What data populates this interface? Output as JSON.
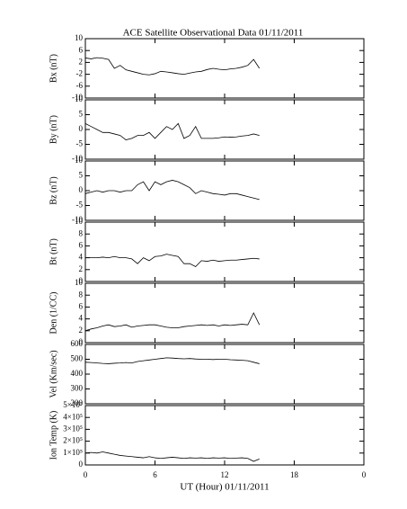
{
  "title": "ACE Satellite Observational Data   01/11/2011",
  "xlabel": "UT (Hour)  01/11/2011",
  "chart_data": [
    {
      "type": "line",
      "ylabel": "Bx (nT)",
      "color": "#000000",
      "x": [
        0,
        0.5,
        1,
        1.5,
        2,
        2.5,
        3,
        3.5,
        4,
        4.5,
        5,
        5.5,
        6,
        6.5,
        7,
        7.5,
        8,
        8.5,
        9,
        9.5,
        10,
        10.5,
        11,
        11.5,
        12,
        12.5,
        13,
        13.5,
        14,
        14.5,
        15
      ],
      "values": [
        3.5,
        3.2,
        3.6,
        3.4,
        3,
        0,
        1,
        -0.5,
        -1,
        -1.5,
        -2,
        -2.2,
        -1.8,
        -1,
        -1.2,
        -1.5,
        -1.8,
        -2,
        -1.6,
        -1.2,
        -1,
        -0.4,
        0,
        -0.3,
        -0.5,
        -0.2,
        0,
        0.4,
        1,
        3,
        0
      ],
      "xlim": [
        0,
        24
      ],
      "xticks": [
        0,
        6,
        12,
        18,
        {
          "value": 24,
          "label": "0"
        }
      ],
      "ylim": [
        -10,
        10
      ],
      "yticks": [
        -10,
        -6,
        -2,
        2,
        6,
        10
      ]
    },
    {
      "type": "line",
      "ylabel": "By (nT)",
      "color": "#000000",
      "x": [
        0,
        0.5,
        1,
        1.5,
        2,
        2.5,
        3,
        3.5,
        4,
        4.5,
        5,
        5.5,
        6,
        6.5,
        7,
        7.5,
        8,
        8.5,
        9,
        9.5,
        10,
        10.5,
        11,
        11.5,
        12,
        12.5,
        13,
        13.5,
        14,
        14.5,
        15
      ],
      "values": [
        2,
        1,
        0,
        -1,
        -1,
        -1.5,
        -2,
        -3.5,
        -3,
        -2,
        -2,
        -1,
        -3,
        -1,
        1,
        0,
        2,
        -3,
        -2,
        1,
        -3,
        -3,
        -3,
        -2.8,
        -2.5,
        -2.6,
        -2.5,
        -2.2,
        -2,
        -1.5,
        -2
      ],
      "xlim": [
        0,
        24
      ],
      "xticks": [
        0,
        6,
        12,
        18,
        {
          "value": 24,
          "label": "0"
        }
      ],
      "ylim": [
        -10,
        10
      ],
      "yticks": [
        -10,
        -5,
        0,
        5,
        10
      ]
    },
    {
      "type": "line",
      "ylabel": "Bz (nT)",
      "color": "#000000",
      "x": [
        0,
        0.5,
        1,
        1.5,
        2,
        2.5,
        3,
        3.5,
        4,
        4.5,
        5,
        5.5,
        6,
        6.5,
        7,
        7.5,
        8,
        8.5,
        9,
        9.5,
        10,
        10.5,
        11,
        11.5,
        12,
        12.5,
        13,
        13.5,
        14,
        14.5,
        15
      ],
      "values": [
        -1,
        -0.5,
        0,
        -0.5,
        0,
        0,
        -0.5,
        0,
        0,
        2,
        3,
        0,
        3,
        2,
        3,
        3.5,
        3,
        2,
        1,
        -1,
        0,
        -0.5,
        -1,
        -1.2,
        -1.5,
        -1,
        -1,
        -1.5,
        -2,
        -2.5,
        -3
      ],
      "xlim": [
        0,
        24
      ],
      "xticks": [
        0,
        6,
        12,
        18,
        {
          "value": 24,
          "label": "0"
        }
      ],
      "ylim": [
        -10,
        10
      ],
      "yticks": [
        -10,
        -5,
        0,
        5,
        10
      ]
    },
    {
      "type": "line",
      "ylabel": "Bt (nT)",
      "color": "#000000",
      "x": [
        0,
        0.5,
        1,
        1.5,
        2,
        2.5,
        3,
        3.5,
        4,
        4.5,
        5,
        5.5,
        6,
        6.5,
        7,
        7.5,
        8,
        8.5,
        9,
        9.5,
        10,
        10.5,
        11,
        11.5,
        12,
        12.5,
        13,
        13.5,
        14,
        14.5,
        15
      ],
      "values": [
        4,
        4,
        4,
        4.1,
        4,
        4.2,
        4,
        4,
        3.8,
        3,
        4,
        3.5,
        4.2,
        4.3,
        4.6,
        4.4,
        4.2,
        3,
        3,
        2.5,
        3.5,
        3.4,
        3.6,
        3.4,
        3.5,
        3.6,
        3.6,
        3.7,
        3.8,
        3.9,
        3.8
      ],
      "xlim": [
        0,
        24
      ],
      "xticks": [
        0,
        6,
        12,
        18,
        {
          "value": 24,
          "label": "0"
        }
      ],
      "ylim": [
        0,
        10
      ],
      "yticks": [
        0,
        2,
        4,
        6,
        8,
        10
      ]
    },
    {
      "type": "line",
      "ylabel": "Den (1/CC)",
      "color": "#000000",
      "x": [
        0,
        0.5,
        1,
        1.5,
        2,
        2.5,
        3,
        3.5,
        4,
        4.5,
        5,
        5.5,
        6,
        6.5,
        7,
        7.5,
        8,
        8.5,
        9,
        9.5,
        10,
        10.5,
        11,
        11.5,
        12,
        12.5,
        13,
        13.5,
        14,
        14.5,
        15
      ],
      "values": [
        2,
        2.3,
        2.5,
        2.8,
        3,
        2.7,
        2.8,
        3,
        2.6,
        2.8,
        2.9,
        3,
        3,
        2.8,
        2.6,
        2.5,
        2.5,
        2.7,
        2.8,
        2.9,
        3,
        2.9,
        3,
        2.8,
        3,
        2.9,
        3,
        3.1,
        3,
        5,
        3
      ],
      "xlim": [
        0,
        24
      ],
      "xticks": [
        0,
        6,
        12,
        18,
        {
          "value": 24,
          "label": "0"
        }
      ],
      "ylim": [
        0,
        10
      ],
      "yticks": [
        0,
        2,
        4,
        6,
        8,
        10
      ]
    },
    {
      "type": "line",
      "ylabel": "Vel (Km/sec)",
      "color": "#000000",
      "x": [
        0,
        0.5,
        1,
        1.5,
        2,
        2.5,
        3,
        3.5,
        4,
        4.5,
        5,
        5.5,
        6,
        6.5,
        7,
        7.5,
        8,
        8.5,
        9,
        9.5,
        10,
        10.5,
        11,
        11.5,
        12,
        12.5,
        13,
        13.5,
        14,
        14.5,
        15
      ],
      "values": [
        480,
        478,
        475,
        472,
        470,
        473,
        475,
        478,
        475,
        485,
        490,
        495,
        500,
        505,
        510,
        508,
        505,
        503,
        505,
        502,
        500,
        500,
        498,
        500,
        500,
        497,
        495,
        493,
        490,
        480,
        470
      ],
      "xlim": [
        0,
        24
      ],
      "xticks": [
        0,
        6,
        12,
        18,
        {
          "value": 24,
          "label": "0"
        }
      ],
      "ylim": [
        200,
        600
      ],
      "yticks": [
        200,
        300,
        400,
        500,
        600
      ]
    },
    {
      "type": "line",
      "ylabel": "Ion Temp (K)",
      "color": "#000000",
      "x": [
        0,
        0.5,
        1,
        1.5,
        2,
        2.5,
        3,
        3.5,
        4,
        4.5,
        5,
        5.5,
        6,
        6.5,
        7,
        7.5,
        8,
        8.5,
        9,
        9.5,
        10,
        10.5,
        11,
        11.5,
        12,
        12.5,
        13,
        13.5,
        14,
        14.5,
        15
      ],
      "values": [
        100000,
        105000,
        100000,
        110000,
        100000,
        90000,
        80000,
        75000,
        70000,
        65000,
        60000,
        70000,
        60000,
        55000,
        60000,
        65000,
        60000,
        55000,
        60000,
        58000,
        60000,
        55000,
        60000,
        58000,
        60000,
        55000,
        58000,
        60000,
        55000,
        30000,
        50000
      ],
      "xlim": [
        0,
        24
      ],
      "xticks": [
        0,
        6,
        12,
        18,
        {
          "value": 24,
          "label": "0"
        }
      ],
      "ylim": [
        0,
        500000
      ],
      "yticks": [
        0,
        {
          "value": 100000,
          "label": "1×10⁵"
        },
        {
          "value": 200000,
          "label": "2×10⁵"
        },
        {
          "value": 300000,
          "label": "3×10⁵"
        },
        {
          "value": 400000,
          "label": "4×10⁵"
        },
        {
          "value": 500000,
          "label": "5×10⁵"
        }
      ]
    }
  ]
}
